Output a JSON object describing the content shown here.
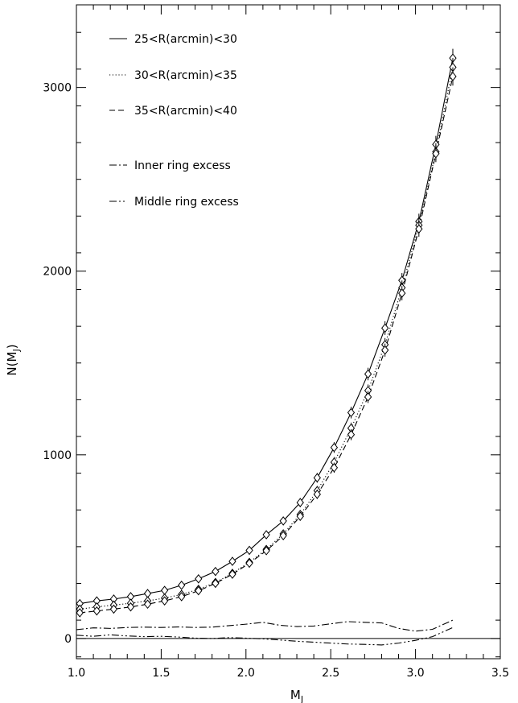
{
  "chart_data": {
    "type": "line",
    "title": "",
    "xlabel": "M_J",
    "ylabel": "N(M_J)",
    "xlim": [
      1.0,
      3.5
    ],
    "ylim": [
      -110,
      3450
    ],
    "xticks": [
      "1.0",
      "1.5",
      "2.0",
      "2.5",
      "3.0",
      "3.5"
    ],
    "yticks": [
      "0",
      "1000",
      "2000",
      "3000"
    ],
    "grid": false,
    "legend_position": "top-left",
    "series": [
      {
        "name": "25<R(arcmin)<30",
        "style": "solid",
        "markers": true,
        "x": [
          1.02,
          1.12,
          1.22,
          1.32,
          1.42,
          1.52,
          1.62,
          1.72,
          1.82,
          1.92,
          2.02,
          2.12,
          2.22,
          2.32,
          2.42,
          2.52,
          2.62,
          2.72,
          2.82,
          2.92,
          3.02,
          3.12,
          3.22
        ],
        "y": [
          190,
          205,
          215,
          228,
          245,
          262,
          290,
          325,
          365,
          420,
          480,
          565,
          640,
          740,
          875,
          1040,
          1230,
          1440,
          1690,
          1950,
          2270,
          2690,
          3160
        ]
      },
      {
        "name": "30<R(arcmin)<35",
        "style": "dotted",
        "markers": true,
        "x": [
          1.02,
          1.12,
          1.22,
          1.32,
          1.42,
          1.52,
          1.62,
          1.72,
          1.82,
          1.92,
          2.02,
          2.12,
          2.22,
          2.32,
          2.42,
          2.52,
          2.62,
          2.72,
          2.82,
          2.92,
          3.02,
          3.12,
          3.22
        ],
        "y": [
          160,
          172,
          182,
          192,
          205,
          220,
          240,
          268,
          305,
          355,
          415,
          485,
          570,
          675,
          805,
          960,
          1145,
          1350,
          1600,
          1910,
          2250,
          2650,
          3110
        ]
      },
      {
        "name": "35<R(arcmin)<40",
        "style": "dashed",
        "markers": true,
        "x": [
          1.02,
          1.12,
          1.22,
          1.32,
          1.42,
          1.52,
          1.62,
          1.72,
          1.82,
          1.92,
          2.02,
          2.12,
          2.22,
          2.32,
          2.42,
          2.52,
          2.62,
          2.72,
          2.82,
          2.92,
          3.02,
          3.12,
          3.22
        ],
        "y": [
          140,
          150,
          160,
          172,
          187,
          205,
          228,
          260,
          300,
          350,
          410,
          478,
          560,
          665,
          785,
          930,
          1110,
          1315,
          1570,
          1880,
          2230,
          2640,
          3060
        ]
      },
      {
        "name": "Inner ring excess",
        "style": "dashdot",
        "markers": false,
        "x": [
          1.0,
          1.1,
          1.2,
          1.3,
          1.4,
          1.5,
          1.6,
          1.7,
          1.8,
          1.9,
          2.0,
          2.1,
          2.2,
          2.3,
          2.4,
          2.5,
          2.6,
          2.7,
          2.8,
          2.9,
          3.0,
          3.1,
          3.22
        ],
        "y": [
          48,
          58,
          55,
          60,
          62,
          60,
          63,
          60,
          62,
          70,
          78,
          88,
          72,
          65,
          68,
          80,
          92,
          88,
          85,
          55,
          40,
          50,
          100
        ]
      },
      {
        "name": "Middle ring excess",
        "style": "dashdotdot",
        "markers": false,
        "x": [
          1.0,
          1.1,
          1.2,
          1.3,
          1.4,
          1.5,
          1.6,
          1.7,
          1.8,
          1.9,
          2.0,
          2.1,
          2.2,
          2.3,
          2.4,
          2.5,
          2.6,
          2.7,
          2.8,
          2.9,
          3.0,
          3.1,
          3.22
        ],
        "y": [
          18,
          12,
          20,
          14,
          10,
          12,
          8,
          2,
          0,
          5,
          2,
          -2,
          -8,
          -15,
          -20,
          -25,
          -30,
          -32,
          -35,
          -25,
          -10,
          10,
          60
        ]
      }
    ]
  }
}
